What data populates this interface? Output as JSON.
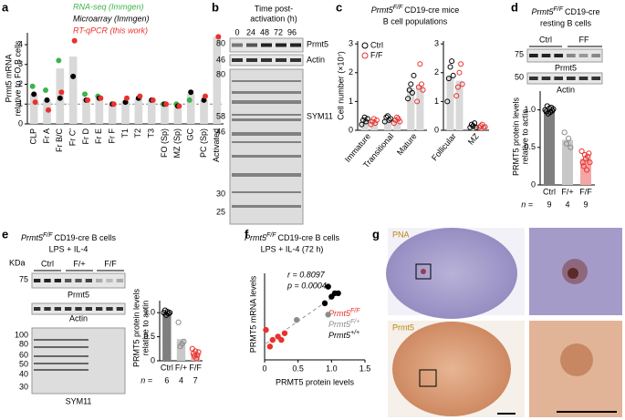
{
  "panel_labels": [
    "a",
    "b",
    "c",
    "d",
    "e",
    "f",
    "g"
  ],
  "chart_data": [
    {
      "type": "bar",
      "ylabel": [
        "Prmt5 mRNA",
        "relative to FO B cells"
      ],
      "categories": [
        "CLP",
        "Fr A",
        "Fr B/C",
        "Fr C'",
        "Fr D",
        "Fr E",
        "Fr F",
        "T1",
        "T2",
        "T3",
        "FO (Sp)",
        "MZ (Sp)",
        "GC",
        "PC (Sp)",
        "Activated"
      ],
      "values": [
        1.5,
        1.2,
        2.8,
        3.4,
        1.3,
        1.3,
        1.0,
        1.15,
        1.3,
        1.2,
        1.0,
        1.0,
        1.5,
        1.2,
        4.4
      ],
      "color": "#d9d9d9",
      "ylim": [
        0,
        4.6
      ],
      "yticks": [
        0,
        1,
        2,
        3,
        4
      ],
      "reference_line": 1,
      "series": [
        {
          "name": "RNA-seq (Immgen)",
          "color": "#3cb44b",
          "values": [
            1.9,
            1.7,
            3.2,
            null,
            1.5,
            1.4,
            null,
            null,
            null,
            null,
            1.0,
            1.0,
            1.2,
            null,
            null
          ]
        },
        {
          "name": "Microarray (Immgen)",
          "color": "#000000",
          "values": [
            1.5,
            1.2,
            1.3,
            2.4,
            1.2,
            1.3,
            1.0,
            1.1,
            1.3,
            1.2,
            1.0,
            0.9,
            1.6,
            1.2,
            null
          ]
        },
        {
          "name": "RT-qPCR (this work)",
          "color": "#e8322d",
          "values": [
            1.1,
            0.7,
            1.6,
            4.2,
            1.2,
            1.3,
            1.0,
            1.3,
            1.4,
            1.2,
            1.0,
            0.9,
            null,
            1.4,
            4.4
          ]
        }
      ]
    },
    {
      "type": "bar",
      "title_gene": "Prmt5",
      "title_allele": "F/F",
      "title": "CD19-cre mice",
      "subtitle": "B cell populations",
      "ylabel": [
        "Cell number (×10⁷)"
      ],
      "categories": [
        "Immature",
        "Transitional",
        "Mature"
      ],
      "ylim": [
        0,
        3.1
      ],
      "yticks": [
        0,
        1,
        2,
        3
      ],
      "bar_color": "#d9d9d9",
      "series": [
        {
          "name": "Ctrl",
          "color": "#000000",
          "values": [
            0.34,
            0.4,
            1.46
          ],
          "points": [
            [
              0.2,
              0.35,
              0.45,
              0.3,
              0.4
            ],
            [
              0.3,
              0.45,
              0.5,
              0.35,
              0.4
            ],
            [
              1.1,
              1.4,
              1.6,
              1.3,
              1.9
            ]
          ]
        },
        {
          "name": "F/F",
          "color": "#e8322d",
          "values": [
            0.3,
            0.35,
            1.56
          ],
          "points": [
            [
              0.2,
              0.3,
              0.4,
              0.25,
              0.35
            ],
            [
              0.25,
              0.35,
              0.45,
              0.4,
              0.3
            ],
            [
              1.0,
              1.5,
              2.3,
              1.6,
              1.4
            ]
          ]
        }
      ]
    },
    {
      "type": "bar",
      "categories": [
        "Follicular",
        "MZ"
      ],
      "ylim": [
        0,
        3.1
      ],
      "yticks": [
        0,
        1,
        2,
        3
      ],
      "bar_color": "#d9d9d9",
      "series": [
        {
          "color": "#000000",
          "values": [
            1.86,
            0.16
          ],
          "points": [
            [
              1.0,
              1.8,
              2.2,
              2.4,
              1.9
            ],
            [
              0.1,
              0.2,
              0.15,
              0.25,
              0.1
            ]
          ]
        },
        {
          "color": "#e8322d",
          "values": [
            1.72,
            0.13
          ],
          "points": [
            [
              1.2,
              1.5,
              2.0,
              2.3,
              1.6
            ],
            [
              0.1,
              0.15,
              0.2,
              0.1,
              0.12
            ]
          ]
        }
      ]
    },
    {
      "type": "bar",
      "ylabel": [
        "PRMT5 protein levels",
        "relative to actin"
      ],
      "categories": [
        "Ctrl",
        "F/+",
        "F/F"
      ],
      "values": [
        1.0,
        0.6,
        0.35
      ],
      "colors": [
        "#7f7f7f",
        "#c8c8c8",
        "#f4a6a6"
      ],
      "point_colors": [
        "#000000",
        "#8c8c8c",
        "#e8322d"
      ],
      "points": [
        [
          1.0,
          0.98,
          1.05,
          0.95,
          1.02,
          0.97,
          1.03,
          0.99,
          1.01
        ],
        [
          0.7,
          0.55,
          0.62,
          0.5
        ],
        [
          0.45,
          0.3,
          0.25,
          0.4,
          0.35,
          0.2,
          0.38,
          0.42,
          0.3
        ]
      ],
      "ylim": [
        0,
        1.25
      ],
      "yticks": [
        0,
        0.5,
        {
          "value": 1,
          "label": "1.0"
        }
      ],
      "n_label": "n =",
      "n": [
        9,
        4,
        9
      ]
    },
    {
      "type": "bar",
      "ylabel": [
        "PRMT5 protein levels",
        "relative to actin"
      ],
      "categories": [
        "Ctrl",
        "F/+",
        "F/F"
      ],
      "values": [
        1.0,
        0.45,
        0.15
      ],
      "colors": [
        "#7f7f7f",
        "#c8c8c8",
        "#f4a6a6"
      ],
      "point_colors": [
        "#000000",
        "#8c8c8c",
        "#e8322d"
      ],
      "points": [
        [
          1.0,
          1.05,
          0.95,
          1.02,
          0.98,
          1.0
        ],
        [
          0.8,
          0.3,
          0.35,
          0.4
        ],
        [
          0.25,
          0.15,
          0.1,
          0.2,
          0.05,
          0.12,
          0.18
        ]
      ],
      "ylim": [
        0,
        1.25
      ],
      "yticks": [
        0,
        0.5,
        {
          "value": 1,
          "label": "1.0"
        }
      ],
      "n_label": "n =",
      "n": [
        6,
        4,
        7
      ]
    },
    {
      "type": "scatter",
      "title_gene": "Prmt5",
      "title_allele": "F/F",
      "title": "CD19-cre B cells",
      "subtitle": "LPS + IL-4 (72 h)",
      "xlabel": "PRMT5 protein levels",
      "ylabel": [
        "PRMT5 mRNA levels"
      ],
      "annotations": [
        "r = 0.8097",
        "p = 0.0004"
      ],
      "xlim": [
        0,
        1.5
      ],
      "ylim": [
        0,
        1.3
      ],
      "xticks": [
        0,
        0.5,
        {
          "value": 1,
          "label": "1.0"
        },
        1.5
      ],
      "series": [
        {
          "name": "Prmt5",
          "allele": "F/F",
          "color": "#e8322d",
          "x": [
            0.02,
            0.08,
            0.12,
            0.2,
            0.25,
            0.3
          ],
          "values": [
            0.45,
            0.2,
            0.3,
            0.35,
            0.3,
            0.4
          ]
        },
        {
          "name": "Prmt5",
          "allele": "F/+",
          "color": "#8c8c8c",
          "x": [
            0.48,
            0.95
          ],
          "values": [
            0.6,
            0.68
          ]
        },
        {
          "name": "Prmt5",
          "allele": "+/+",
          "color": "#000000",
          "x": [
            0.9,
            0.95,
            1.0,
            1.05,
            1.1
          ],
          "values": [
            0.85,
            1.1,
            0.95,
            1.0,
            1.0
          ]
        }
      ]
    }
  ],
  "blot_b": {
    "title": [
      "Time post-",
      "activation (h)"
    ],
    "lanes": [
      "0",
      "24",
      "48",
      "72",
      "96"
    ],
    "markers": [
      "80",
      "46",
      "80",
      "58",
      "46",
      "30",
      "25"
    ],
    "bands": [
      "Prmt5",
      "Actin",
      "SYM11"
    ]
  },
  "blot_d": {
    "title_gene": "Prmt5",
    "title_allele": "F/F",
    "title": "CD19-cre",
    "subtitle": "resting B cells",
    "groups": [
      "Ctrl",
      "FF"
    ],
    "markers": [
      "75",
      "50"
    ],
    "bands": [
      "Prmt5",
      "Actin"
    ]
  },
  "blot_e": {
    "title_gene": "Prmt5",
    "title_allele": "F/F",
    "title": "CD19-cre B cells",
    "subtitle": "LPS + IL-4",
    "unit": "KDa",
    "groups": [
      "Ctrl",
      "F/+",
      "F/F"
    ],
    "markers": [
      "75",
      "100",
      "80",
      "60",
      "50",
      "40",
      "30"
    ],
    "bands": [
      "Prmt5",
      "Actin",
      "SYM11"
    ]
  },
  "images_g": {
    "labels": [
      "PNA",
      "Prmt5"
    ]
  }
}
